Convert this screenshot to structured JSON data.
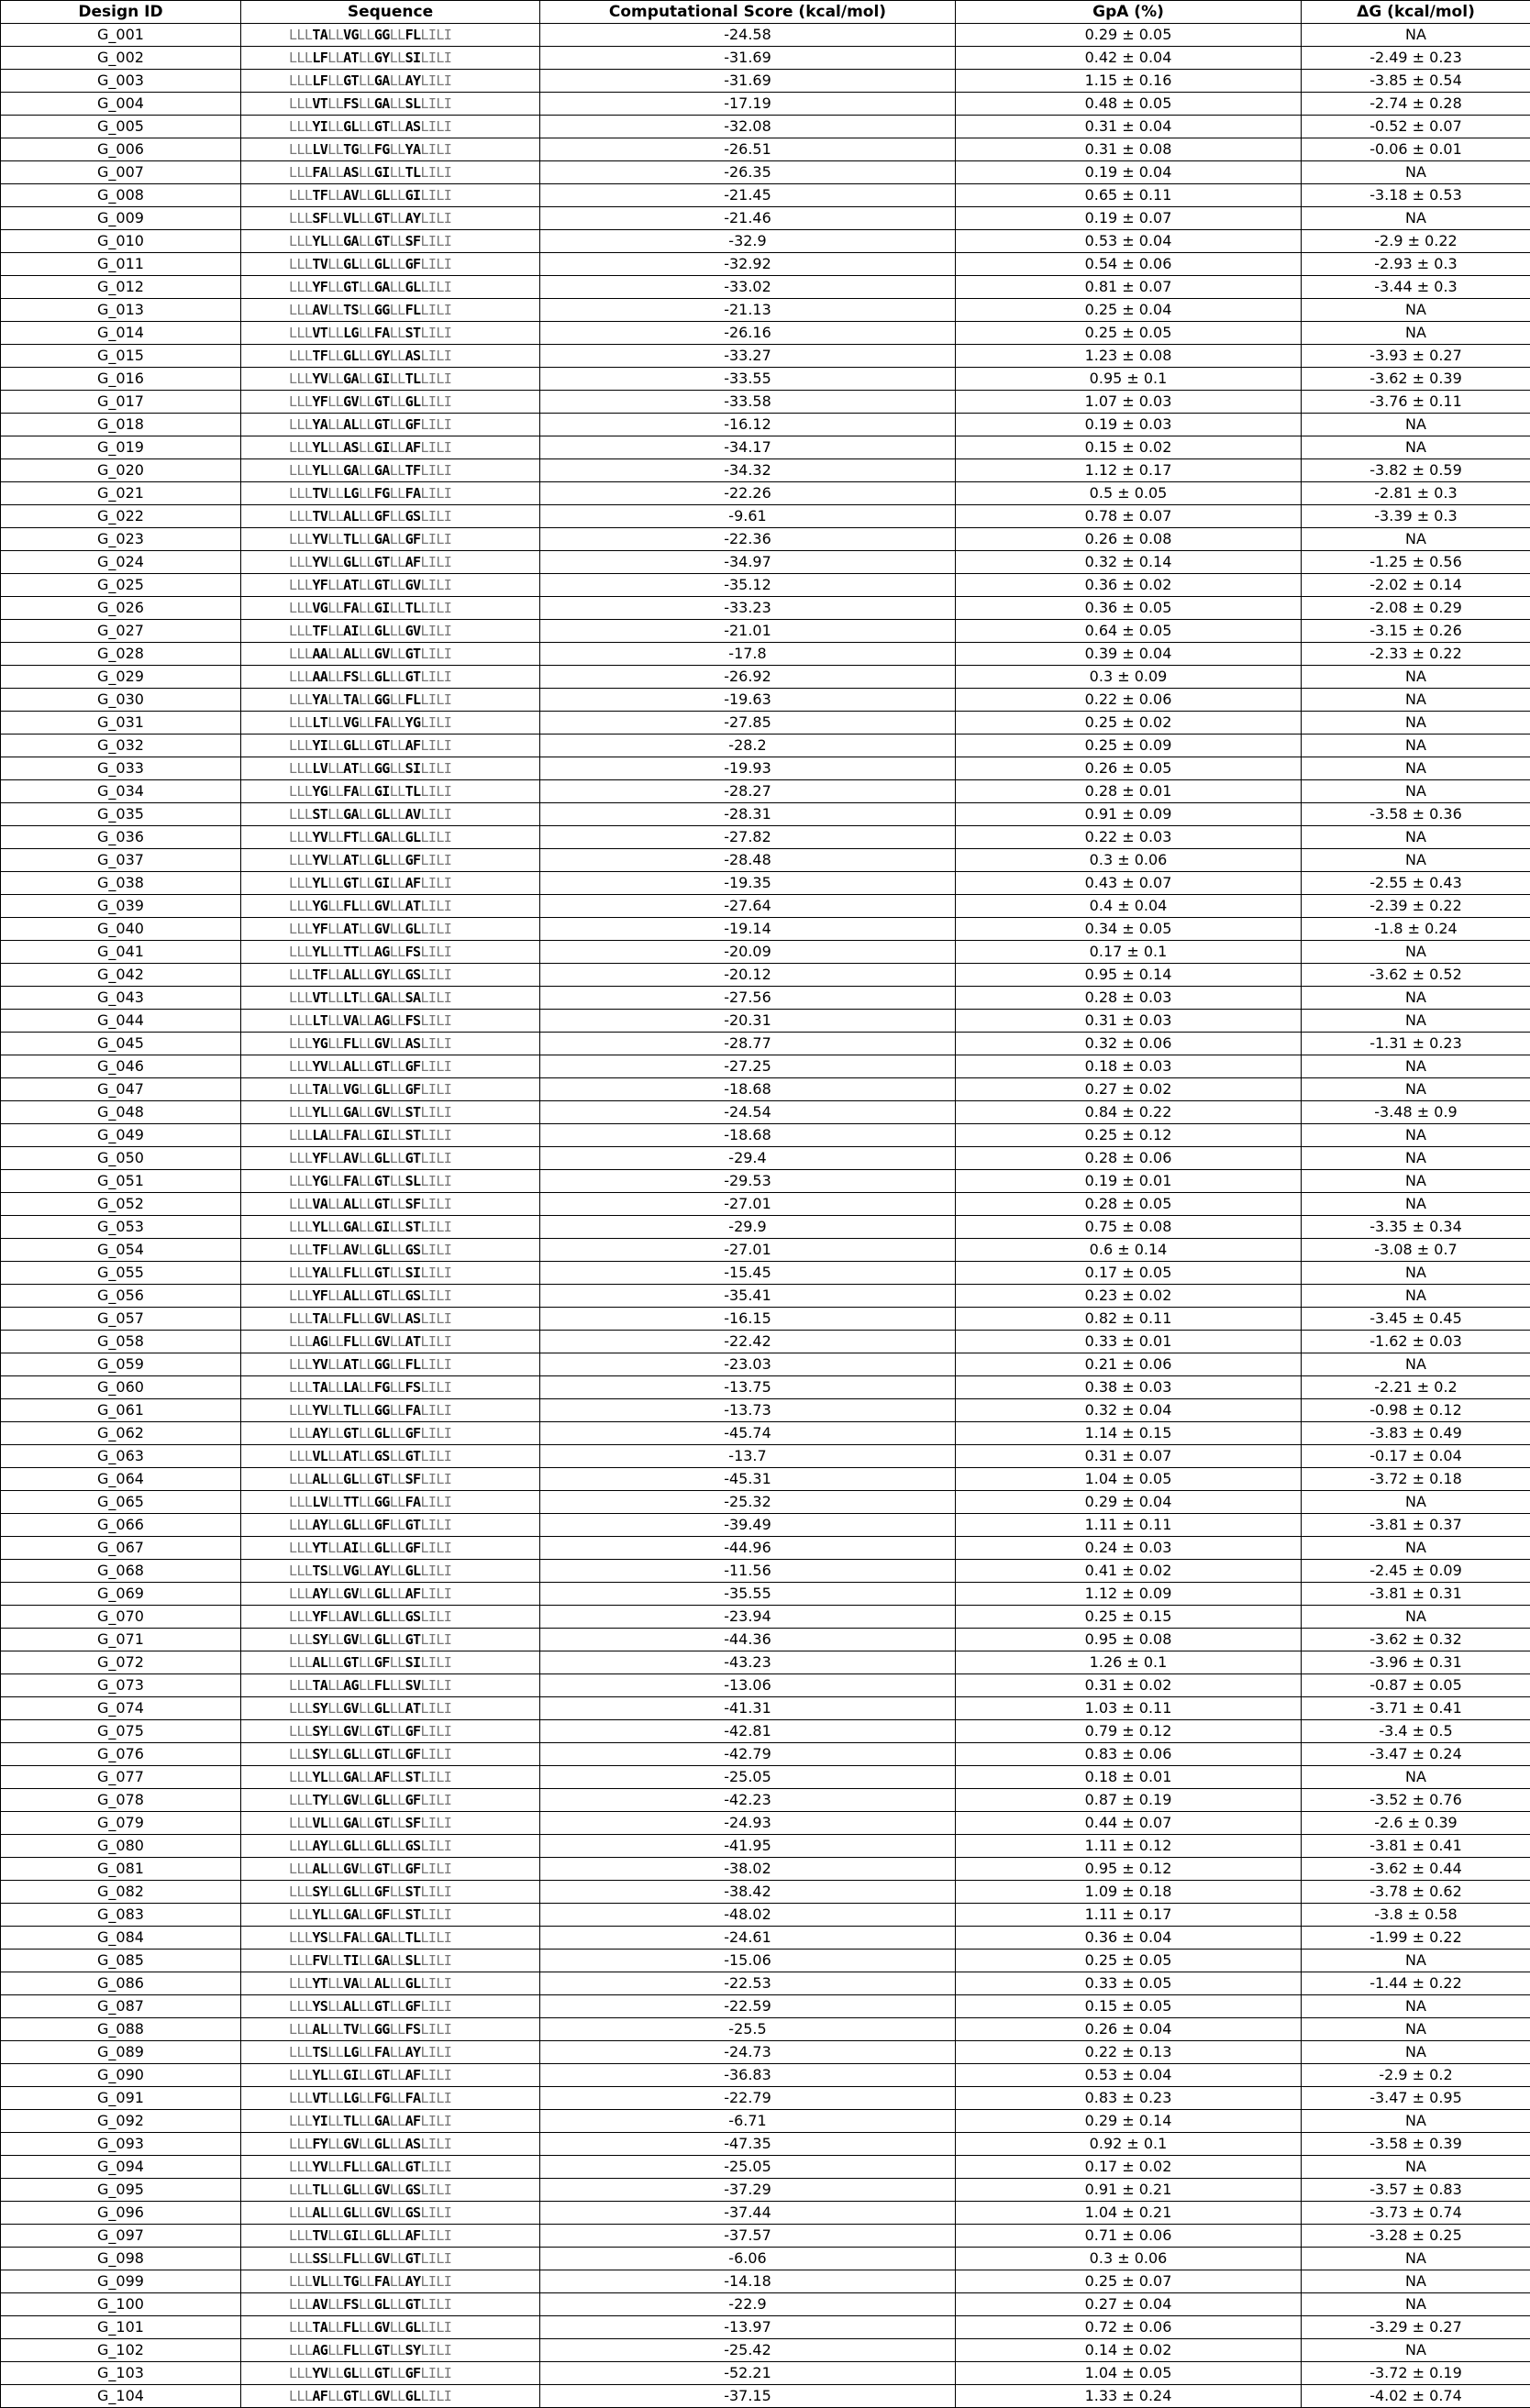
{
  "table": {
    "headers": [
      "Design ID",
      "Sequence",
      "Computational Score (kcal/mol)",
      "GpA (%)",
      "ΔG (kcal/mol)"
    ],
    "rows": [
      [
        "G_001",
        "LLLTALLVGLLGGLLFLLILI",
        "-24.58",
        "0.29 ± 0.05",
        "NA"
      ],
      [
        "G_002",
        "LLLLFLLATLLGYLLSILILI",
        "-31.69",
        "0.42 ± 0.04",
        "-2.49 ± 0.23"
      ],
      [
        "G_003",
        "LLLLFLLGTLLGALLAYLILI",
        "-31.69",
        "1.15 ± 0.16",
        "-3.85 ± 0.54"
      ],
      [
        "G_004",
        "LLLVTLLFSLLGALLSLLILI",
        "-17.19",
        "0.48 ± 0.05",
        "-2.74 ± 0.28"
      ],
      [
        "G_005",
        "LLLYILLGLLLGTLLASLILI",
        "-32.08",
        "0.31 ± 0.04",
        "-0.52 ± 0.07"
      ],
      [
        "G_006",
        "LLLLVLLTGLLFGLLYALILI",
        "-26.51",
        "0.31 ± 0.08",
        "-0.06 ± 0.01"
      ],
      [
        "G_007",
        "LLLFALLASLLGILLTLLILI",
        "-26.35",
        "0.19 ± 0.04",
        "NA"
      ],
      [
        "G_008",
        "LLLTFLLAVLLGLLLGILILI",
        "-21.45",
        "0.65 ± 0.11",
        "-3.18 ± 0.53"
      ],
      [
        "G_009",
        "LLLSFLLVLLLGTLLAYLILI",
        "-21.46",
        "0.19 ± 0.07",
        "NA"
      ],
      [
        "G_010",
        "LLLYLLLGALLGTLLSFLILI",
        "-32.9",
        "0.53 ± 0.04",
        "-2.9 ± 0.22"
      ],
      [
        "G_011",
        "LLLTVLLGLLLGLLLGFLILI",
        "-32.92",
        "0.54 ± 0.06",
        "-2.93 ± 0.3"
      ],
      [
        "G_012",
        "LLLYFLLGTLLGALLGLLILI",
        "-33.02",
        "0.81 ± 0.07",
        "-3.44 ± 0.3"
      ],
      [
        "G_013",
        "LLLAVLLTSLLGGLLFLLILI",
        "-21.13",
        "0.25 ± 0.04",
        "NA"
      ],
      [
        "G_014",
        "LLLVTLLLGLLFALLSTLILI",
        "-26.16",
        "0.25 ± 0.05",
        "NA"
      ],
      [
        "G_015",
        "LLLTFLLGLLLGYLLASLILI",
        "-33.27",
        "1.23 ± 0.08",
        "-3.93 ± 0.27"
      ],
      [
        "G_016",
        "LLLYVLLGALLGILLTLLILI",
        "-33.55",
        "0.95 ± 0.1",
        "-3.62 ± 0.39"
      ],
      [
        "G_017",
        "LLLYFLLGVLLGTLLGLLILI",
        "-33.58",
        "1.07 ± 0.03",
        "-3.76 ± 0.11"
      ],
      [
        "G_018",
        "LLLYALLALLLGTLLGFLILI",
        "-16.12",
        "0.19 ± 0.03",
        "NA"
      ],
      [
        "G_019",
        "LLLYLLLASLLGILLAFLILI",
        "-34.17",
        "0.15 ± 0.02",
        "NA"
      ],
      [
        "G_020",
        "LLLYLLLGALLGALLTFLILI",
        "-34.32",
        "1.12 ± 0.17",
        "-3.82 ± 0.59"
      ],
      [
        "G_021",
        "LLLTVLLLGLLFGLLFALILI",
        "-22.26",
        "0.5 ± 0.05",
        "-2.81 ± 0.3"
      ],
      [
        "G_022",
        "LLLTVLLALLLGFLLGSLILI",
        "-9.61",
        "0.78 ± 0.07",
        "-3.39 ± 0.3"
      ],
      [
        "G_023",
        "LLLYVLLTLLLGALLGFLILI",
        "-22.36",
        "0.26 ± 0.08",
        "NA"
      ],
      [
        "G_024",
        "LLLYVLLGLLLGTLLAFLILI",
        "-34.97",
        "0.32 ± 0.14",
        "-1.25 ± 0.56"
      ],
      [
        "G_025",
        "LLLYFLLATLLGTLLGVLILI",
        "-35.12",
        "0.36 ± 0.02",
        "-2.02 ± 0.14"
      ],
      [
        "G_026",
        "LLLVGLLFALLGILLTLLILI",
        "-33.23",
        "0.36 ± 0.05",
        "-2.08 ± 0.29"
      ],
      [
        "G_027",
        "LLLTFLLAILLGLLLGVLILI",
        "-21.01",
        "0.64 ± 0.05",
        "-3.15 ± 0.26"
      ],
      [
        "G_028",
        "LLLAALLALLLGVLLGTLILI",
        "-17.8",
        "0.39 ± 0.04",
        "-2.33 ± 0.22"
      ],
      [
        "G_029",
        "LLLAALLFSLLGLLLGTLILI",
        "-26.92",
        "0.3 ± 0.09",
        "NA"
      ],
      [
        "G_030",
        "LLLYALLTALLGGLLFLLILI",
        "-19.63",
        "0.22 ± 0.06",
        "NA"
      ],
      [
        "G_031",
        "LLLLTLLVGLLFALLYGLILI",
        "-27.85",
        "0.25 ± 0.02",
        "NA"
      ],
      [
        "G_032",
        "LLLYILLGLLLGTLLAFLILI",
        "-28.2",
        "0.25 ± 0.09",
        "NA"
      ],
      [
        "G_033",
        "LLLLVLLATLLGGLLSILILI",
        "-19.93",
        "0.26 ± 0.05",
        "NA"
      ],
      [
        "G_034",
        "LLLYGLLFALLGILLTLLILI",
        "-28.27",
        "0.28 ± 0.01",
        "NA"
      ],
      [
        "G_035",
        "LLLSTLLGALLGLLLAVLILI",
        "-28.31",
        "0.91 ± 0.09",
        "-3.58 ± 0.36"
      ],
      [
        "G_036",
        "LLLYVLLFTLLGALLGLLILI",
        "-27.82",
        "0.22 ± 0.03",
        "NA"
      ],
      [
        "G_037",
        "LLLYVLLATLLGLLLGFLILI",
        "-28.48",
        "0.3 ± 0.06",
        "NA"
      ],
      [
        "G_038",
        "LLLYLLLGTLLGILLAFLILI",
        "-19.35",
        "0.43 ± 0.07",
        "-2.55 ± 0.43"
      ],
      [
        "G_039",
        "LLLYGLLFLLLGVLLATLILI",
        "-27.64",
        "0.4 ± 0.04",
        "-2.39 ± 0.22"
      ],
      [
        "G_040",
        "LLLYFLLATLLGVLLGLLILI",
        "-19.14",
        "0.34 ± 0.05",
        "-1.8 ± 0.24"
      ],
      [
        "G_041",
        "LLLYLLLTTLLAGLLFSLILI",
        "-20.09",
        "0.17 ± 0.1",
        "NA"
      ],
      [
        "G_042",
        "LLLTFLLALLLGYLLGSLILI",
        "-20.12",
        "0.95 ± 0.14",
        "-3.62 ± 0.52"
      ],
      [
        "G_043",
        "LLLVTLLLTLLGALLSALILI",
        "-27.56",
        "0.28 ± 0.03",
        "NA"
      ],
      [
        "G_044",
        "LLLLTLLVALLAGLLFSLILI",
        "-20.31",
        "0.31 ± 0.03",
        "NA"
      ],
      [
        "G_045",
        "LLLYGLLFLLLGVLLASLILI",
        "-28.77",
        "0.32 ± 0.06",
        "-1.31 ± 0.23"
      ],
      [
        "G_046",
        "LLLYVLLALLLGTLLGFLILI",
        "-27.25",
        "0.18 ± 0.03",
        "NA"
      ],
      [
        "G_047",
        "LLLTALLVGLLGLLLGFLILI",
        "-18.68",
        "0.27 ± 0.02",
        "NA"
      ],
      [
        "G_048",
        "LLLYLLLGALLGVLLSTLILI",
        "-24.54",
        "0.84 ± 0.22",
        "-3.48 ± 0.9"
      ],
      [
        "G_049",
        "LLLLALLFALLGILLSTLILI",
        "-18.68",
        "0.25 ± 0.12",
        "NA"
      ],
      [
        "G_050",
        "LLLYFLLAVLLGLLLGTLILI",
        "-29.4",
        "0.28 ± 0.06",
        "NA"
      ],
      [
        "G_051",
        "LLLYGLLFALLGTLLSLLILI",
        "-29.53",
        "0.19 ± 0.01",
        "NA"
      ],
      [
        "G_052",
        "LLLVALLALLLGTLLSFLILI",
        "-27.01",
        "0.28 ± 0.05",
        "NA"
      ],
      [
        "G_053",
        "LLLYLLLGALLGILLSTLILI",
        "-29.9",
        "0.75 ± 0.08",
        "-3.35 ± 0.34"
      ],
      [
        "G_054",
        "LLLTFLLAVLLGLLLGSLILI",
        "-27.01",
        "0.6 ± 0.14",
        "-3.08 ± 0.7"
      ],
      [
        "G_055",
        "LLLYALLFLLLGTLLSILILI",
        "-15.45",
        "0.17 ± 0.05",
        "NA"
      ],
      [
        "G_056",
        "LLLYFLLALLLGTLLGSLILI",
        "-35.41",
        "0.23 ± 0.02",
        "NA"
      ],
      [
        "G_057",
        "LLLTALLFLLLGVLLASLILI",
        "-16.15",
        "0.82 ± 0.11",
        "-3.45 ± 0.45"
      ],
      [
        "G_058",
        "LLLAGLLFLLLGVLLATLILI",
        "-22.42",
        "0.33 ± 0.01",
        "-1.62 ± 0.03"
      ],
      [
        "G_059",
        "LLLYVLLATLLGGLLFLLILI",
        "-23.03",
        "0.21 ± 0.06",
        "NA"
      ],
      [
        "G_060",
        "LLLTALLLALLFGLLFSLILI",
        "-13.75",
        "0.38 ± 0.03",
        "-2.21 ± 0.2"
      ],
      [
        "G_061",
        "LLLYVLLTLLLGGLLFALILI",
        "-13.73",
        "0.32 ± 0.04",
        "-0.98 ± 0.12"
      ],
      [
        "G_062",
        "LLLAYLLGTLLGLLLGFLILI",
        "-45.74",
        "1.14 ± 0.15",
        "-3.83 ± 0.49"
      ],
      [
        "G_063",
        "LLLVLLLATLLGSLLGTLILI",
        "-13.7",
        "0.31 ± 0.07",
        "-0.17 ± 0.04"
      ],
      [
        "G_064",
        "LLLALLLGLLLGTLLSFLILI",
        "-45.31",
        "1.04 ± 0.05",
        "-3.72 ± 0.18"
      ],
      [
        "G_065",
        "LLLLVLLTTLLGGLLFALILI",
        "-25.32",
        "0.29 ± 0.04",
        "NA"
      ],
      [
        "G_066",
        "LLLAYLLGLLLGFLLGTLILI",
        "-39.49",
        "1.11 ± 0.11",
        "-3.81 ± 0.37"
      ],
      [
        "G_067",
        "LLLYTLLAILLGLLLGFLILI",
        "-44.96",
        "0.24 ± 0.03",
        "NA"
      ],
      [
        "G_068",
        "LLLTSLLVGLLAYLLGLLILI",
        "-11.56",
        "0.41 ± 0.02",
        "-2.45 ± 0.09"
      ],
      [
        "G_069",
        "LLLAYLLGVLLGLLLAFLILI",
        "-35.55",
        "1.12 ± 0.09",
        "-3.81 ± 0.31"
      ],
      [
        "G_070",
        "LLLYFLLAVLLGLLLGSLILI",
        "-23.94",
        "0.25 ± 0.15",
        "NA"
      ],
      [
        "G_071",
        "LLLSYLLGVLLGLLLGTLILI",
        "-44.36",
        "0.95 ± 0.08",
        "-3.62 ± 0.32"
      ],
      [
        "G_072",
        "LLLALLLGTLLGFLLSILILI",
        "-43.23",
        "1.26 ± 0.1",
        "-3.96 ± 0.31"
      ],
      [
        "G_073",
        "LLLTALLAGLLFLLLSVLILI",
        "-13.06",
        "0.31 ± 0.02",
        "-0.87 ± 0.05"
      ],
      [
        "G_074",
        "LLLSYLLGVLLGLLLATLILI",
        "-41.31",
        "1.03 ± 0.11",
        "-3.71 ± 0.41"
      ],
      [
        "G_075",
        "LLLSYLLGVLLGTLLGFLILI",
        "-42.81",
        "0.79 ± 0.12",
        "-3.4 ± 0.5"
      ],
      [
        "G_076",
        "LLLSYLLGLLLGTLLGFLILI",
        "-42.79",
        "0.83 ± 0.06",
        "-3.47 ± 0.24"
      ],
      [
        "G_077",
        "LLLYLLLGALLAFLLSTLILI",
        "-25.05",
        "0.18 ± 0.01",
        "NA"
      ],
      [
        "G_078",
        "LLLTYLLGVLLGLLLGFLILI",
        "-42.23",
        "0.87 ± 0.19",
        "-3.52 ± 0.76"
      ],
      [
        "G_079",
        "LLLVLLLGALLGTLLSFLILI",
        "-24.93",
        "0.44 ± 0.07",
        "-2.6 ± 0.39"
      ],
      [
        "G_080",
        "LLLAYLLGLLLGLLLGSLILI",
        "-41.95",
        "1.11 ± 0.12",
        "-3.81 ± 0.41"
      ],
      [
        "G_081",
        "LLLALLLGVLLGTLLGFLILI",
        "-38.02",
        "0.95 ± 0.12",
        "-3.62 ± 0.44"
      ],
      [
        "G_082",
        "LLLSYLLGLLLGFLLSTLILI",
        "-38.42",
        "1.09 ± 0.18",
        "-3.78 ± 0.62"
      ],
      [
        "G_083",
        "LLLYLLLGALLGFLLSTLILI",
        "-48.02",
        "1.11 ± 0.17",
        "-3.8 ± 0.58"
      ],
      [
        "G_084",
        "LLLYSLLFALLGALLTLLILI",
        "-24.61",
        "0.36 ± 0.04",
        "-1.99 ± 0.22"
      ],
      [
        "G_085",
        "LLLFVLLTILLGALLSLLILI",
        "-15.06",
        "0.25 ± 0.05",
        "NA"
      ],
      [
        "G_086",
        "LLLYTLLVALLALLLGLLILI",
        "-22.53",
        "0.33 ± 0.05",
        "-1.44 ± 0.22"
      ],
      [
        "G_087",
        "LLLYSLLALLLGTLLGFLILI",
        "-22.59",
        "0.15 ± 0.05",
        "NA"
      ],
      [
        "G_088",
        "LLLALLLTVLLGGLLFSLILI",
        "-25.5",
        "0.26 ± 0.04",
        "NA"
      ],
      [
        "G_089",
        "LLLTSLLLGLLFALLAYLILI",
        "-24.73",
        "0.22 ± 0.13",
        "NA"
      ],
      [
        "G_090",
        "LLLYLLLGILLGTLLAFLILI",
        "-36.83",
        "0.53 ± 0.04",
        "-2.9 ± 0.2"
      ],
      [
        "G_091",
        "LLLVTLLLGLLFGLLFALILI",
        "-22.79",
        "0.83 ± 0.23",
        "-3.47 ± 0.95"
      ],
      [
        "G_092",
        "LLLYILLTLLLGALLAFLILI",
        "-6.71",
        "0.29 ± 0.14",
        "NA"
      ],
      [
        "G_093",
        "LLLFYLLGVLLGLLLASLILI",
        "-47.35",
        "0.92 ± 0.1",
        "-3.58 ± 0.39"
      ],
      [
        "G_094",
        "LLLYVLLFLLLGALLGTLILI",
        "-25.05",
        "0.17 ± 0.02",
        "NA"
      ],
      [
        "G_095",
        "LLLTLLLGLLLGVLLGSLILI",
        "-37.29",
        "0.91 ± 0.21",
        "-3.57 ± 0.83"
      ],
      [
        "G_096",
        "LLLALLLGLLLGVLLGSLILI",
        "-37.44",
        "1.04 ± 0.21",
        "-3.73 ± 0.74"
      ],
      [
        "G_097",
        "LLLTVLLGILLGLLLAFLILI",
        "-37.57",
        "0.71 ± 0.06",
        "-3.28 ± 0.25"
      ],
      [
        "G_098",
        "LLLSSLLFLLLGVLLGTLILI",
        "-6.06",
        "0.3 ± 0.06",
        "NA"
      ],
      [
        "G_099",
        "LLLVLLLTGLLFALLAYLILI",
        "-14.18",
        "0.25 ± 0.07",
        "NA"
      ],
      [
        "G_100",
        "LLLAVLLFSLLGLLLGTLILI",
        "-22.9",
        "0.27 ± 0.04",
        "NA"
      ],
      [
        "G_101",
        "LLLTALLFLLLGVLLGLLILI",
        "-13.97",
        "0.72 ± 0.06",
        "-3.29 ± 0.27"
      ],
      [
        "G_102",
        "LLLAGLLFLLLGTLLSYLILI",
        "-25.42",
        "0.14 ± 0.02",
        "NA"
      ],
      [
        "G_103",
        "LLLYVLLGLLLGTLLGFLILI",
        "-52.21",
        "1.04 ± 0.05",
        "-3.72 ± 0.19"
      ],
      [
        "G_104",
        "LLLAFLLGTLLGVLLGLLILI",
        "-37.15",
        "1.33 ± 0.24",
        "-4.02 ± 0.74"
      ]
    ]
  }
}
